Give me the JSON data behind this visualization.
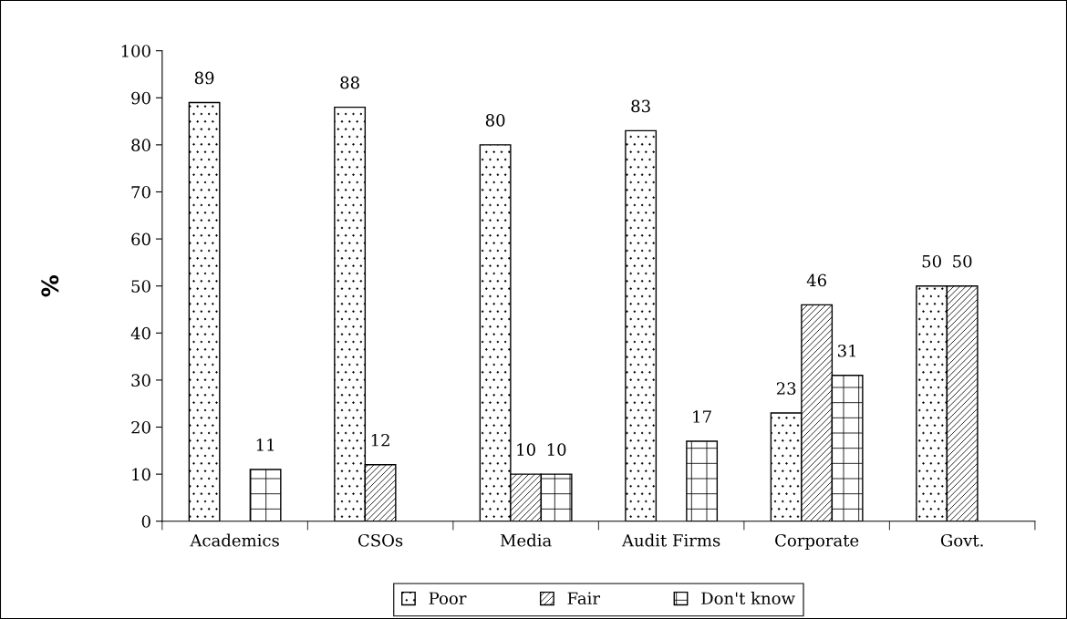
{
  "chart_data": {
    "type": "bar",
    "ylabel": "%",
    "categories": [
      "Academics",
      "CSOs",
      "Media",
      "Audit Firms",
      "Corporate",
      "Govt."
    ],
    "series": [
      {
        "name": "Poor",
        "color": "#ffffff",
        "values": [
          89,
          88,
          80,
          83,
          23,
          50
        ]
      },
      {
        "name": "Fair",
        "color": "#ffffff",
        "values": [
          null,
          12,
          10,
          null,
          46,
          50
        ]
      },
      {
        "name": "Don't know",
        "color": "#ffffff",
        "values": [
          11,
          null,
          10,
          17,
          31,
          null
        ]
      }
    ],
    "ylim": [
      0,
      100
    ],
    "yticks": [
      0,
      10,
      20,
      30,
      40,
      50,
      60,
      70,
      80,
      90,
      100
    ],
    "data_labels": true,
    "grid": false,
    "legend": "bottom"
  }
}
